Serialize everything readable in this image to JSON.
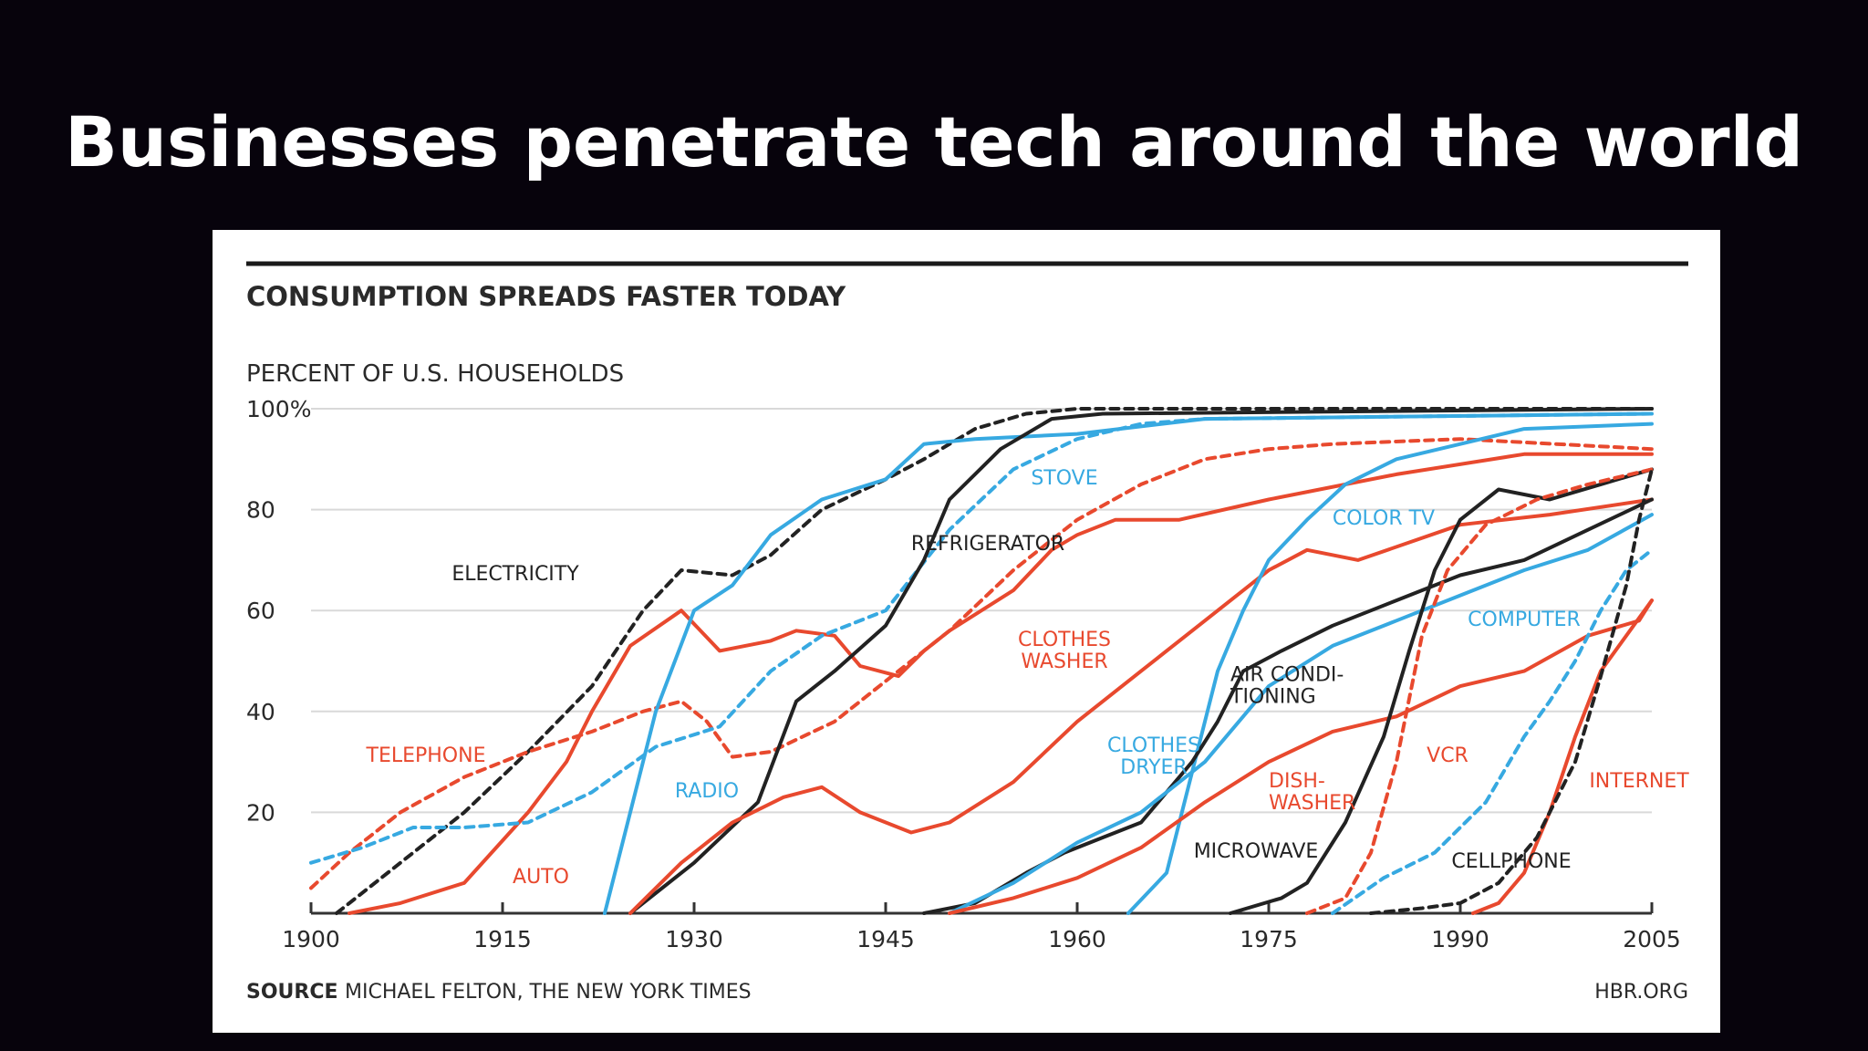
{
  "slide": {
    "title": "Businesses penetrate tech around the world"
  },
  "chart_data": {
    "type": "line",
    "title": "CONSUMPTION SPREADS FASTER TODAY",
    "ylabel": "PERCENT OF U.S. HOUSEHOLDS",
    "xlabel": "",
    "xlim": [
      1900,
      2005
    ],
    "ylim": [
      0,
      100
    ],
    "x_ticks": [
      "1900",
      "1915",
      "1930",
      "1945",
      "1960",
      "1975",
      "1990",
      "2005"
    ],
    "y_ticks": [
      "100%",
      "80",
      "60",
      "40",
      "20"
    ],
    "grid": true,
    "source_label": "SOURCE",
    "source_text": "MICHAEL FELTON, THE NEW YORK TIMES",
    "credit": "HBR.ORG",
    "colors": {
      "red": "#e8492e",
      "blue": "#37a9e1",
      "black": "#222222",
      "grid": "#d9d9d9"
    },
    "series": [
      {
        "name": "ELECTRICITY",
        "color": "black",
        "dash": true,
        "label_lines": [
          "ELECTRICITY"
        ],
        "points": [
          [
            1902,
            0
          ],
          [
            1907,
            10
          ],
          [
            1912,
            20
          ],
          [
            1917,
            32
          ],
          [
            1922,
            45
          ],
          [
            1926,
            60
          ],
          [
            1929,
            68
          ],
          [
            1933,
            67
          ],
          [
            1936,
            71
          ],
          [
            1940,
            80
          ],
          [
            1945,
            86
          ],
          [
            1948,
            90
          ],
          [
            1952,
            96
          ],
          [
            1956,
            99
          ],
          [
            1960,
            100
          ],
          [
            2005,
            100
          ]
        ]
      },
      {
        "name": "TELEPHONE",
        "color": "red",
        "dash": true,
        "label_lines": [
          "TELEPHONE"
        ],
        "points": [
          [
            1900,
            5
          ],
          [
            1903,
            12
          ],
          [
            1907,
            20
          ],
          [
            1912,
            27
          ],
          [
            1917,
            32
          ],
          [
            1922,
            36
          ],
          [
            1926,
            40
          ],
          [
            1929,
            42
          ],
          [
            1931,
            38
          ],
          [
            1933,
            31
          ],
          [
            1936,
            32
          ],
          [
            1941,
            38
          ],
          [
            1945,
            46
          ],
          [
            1950,
            56
          ],
          [
            1955,
            68
          ],
          [
            1960,
            78
          ],
          [
            1965,
            85
          ],
          [
            1970,
            90
          ],
          [
            1975,
            92
          ],
          [
            1980,
            93
          ],
          [
            1990,
            94
          ],
          [
            2005,
            92
          ]
        ]
      },
      {
        "name": "AUTO",
        "color": "red",
        "dash": false,
        "label_lines": [
          "AUTO"
        ],
        "points": [
          [
            1903,
            0
          ],
          [
            1907,
            2
          ],
          [
            1912,
            6
          ],
          [
            1917,
            20
          ],
          [
            1920,
            30
          ],
          [
            1922,
            40
          ],
          [
            1925,
            53
          ],
          [
            1929,
            60
          ],
          [
            1932,
            52
          ],
          [
            1936,
            54
          ],
          [
            1938,
            56
          ],
          [
            1941,
            55
          ],
          [
            1943,
            49
          ],
          [
            1946,
            47
          ],
          [
            1948,
            52
          ],
          [
            1950,
            56
          ],
          [
            1955,
            64
          ],
          [
            1958,
            72
          ],
          [
            1960,
            75
          ],
          [
            1963,
            78
          ],
          [
            1968,
            78
          ],
          [
            1975,
            82
          ],
          [
            1985,
            87
          ],
          [
            1995,
            91
          ],
          [
            2005,
            91
          ]
        ]
      },
      {
        "name": "STOVE",
        "color": "blue",
        "dash": true,
        "label_lines": [
          "STOVE"
        ],
        "points": [
          [
            1900,
            10
          ],
          [
            1904,
            13
          ],
          [
            1908,
            17
          ],
          [
            1912,
            17
          ],
          [
            1917,
            18
          ],
          [
            1922,
            24
          ],
          [
            1927,
            33
          ],
          [
            1932,
            37
          ],
          [
            1936,
            48
          ],
          [
            1940,
            55
          ],
          [
            1945,
            60
          ],
          [
            1950,
            76
          ],
          [
            1955,
            88
          ],
          [
            1960,
            94
          ],
          [
            1965,
            97
          ],
          [
            1970,
            98
          ],
          [
            2005,
            99
          ]
        ]
      },
      {
        "name": "RADIO",
        "color": "blue",
        "dash": false,
        "label_lines": [
          "RADIO"
        ],
        "points": [
          [
            1923,
            0
          ],
          [
            1925,
            20
          ],
          [
            1927,
            40
          ],
          [
            1930,
            60
          ],
          [
            1933,
            65
          ],
          [
            1936,
            75
          ],
          [
            1940,
            82
          ],
          [
            1945,
            86
          ],
          [
            1948,
            93
          ],
          [
            1952,
            94
          ],
          [
            1960,
            95
          ],
          [
            1970,
            98
          ],
          [
            2005,
            99
          ]
        ]
      },
      {
        "name": "REFRIGERATOR",
        "color": "black",
        "dash": false,
        "label_lines": [
          "REFRIGERATOR"
        ],
        "points": [
          [
            1925,
            0
          ],
          [
            1930,
            10
          ],
          [
            1935,
            22
          ],
          [
            1938,
            42
          ],
          [
            1941,
            48
          ],
          [
            1945,
            57
          ],
          [
            1948,
            70
          ],
          [
            1950,
            82
          ],
          [
            1954,
            92
          ],
          [
            1958,
            98
          ],
          [
            1962,
            99
          ],
          [
            2005,
            100
          ]
        ]
      },
      {
        "name": "CLOTHES WASHER",
        "color": "red",
        "dash": false,
        "label_lines": [
          "CLOTHES",
          "WASHER"
        ],
        "points": [
          [
            1925,
            0
          ],
          [
            1929,
            10
          ],
          [
            1933,
            18
          ],
          [
            1937,
            23
          ],
          [
            1940,
            25
          ],
          [
            1943,
            20
          ],
          [
            1947,
            16
          ],
          [
            1950,
            18
          ],
          [
            1955,
            26
          ],
          [
            1960,
            38
          ],
          [
            1965,
            48
          ],
          [
            1970,
            58
          ],
          [
            1975,
            68
          ],
          [
            1978,
            72
          ],
          [
            1982,
            70
          ],
          [
            1990,
            77
          ],
          [
            1997,
            79
          ],
          [
            2005,
            82
          ]
        ]
      },
      {
        "name": "COLOR TV",
        "color": "blue",
        "dash": false,
        "label_lines": [
          "COLOR TV"
        ],
        "points": [
          [
            1964,
            0
          ],
          [
            1967,
            8
          ],
          [
            1969,
            28
          ],
          [
            1971,
            48
          ],
          [
            1973,
            60
          ],
          [
            1975,
            70
          ],
          [
            1978,
            78
          ],
          [
            1981,
            85
          ],
          [
            1985,
            90
          ],
          [
            1990,
            93
          ],
          [
            1995,
            96
          ],
          [
            2005,
            97
          ]
        ]
      },
      {
        "name": "AIR CONDITIONING",
        "color": "black",
        "dash": false,
        "label_lines": [
          "AIR CONDI-",
          "TIONING"
        ],
        "points": [
          [
            1948,
            0
          ],
          [
            1952,
            2
          ],
          [
            1956,
            8
          ],
          [
            1959,
            12
          ],
          [
            1962,
            15
          ],
          [
            1965,
            18
          ],
          [
            1969,
            30
          ],
          [
            1971,
            38
          ],
          [
            1973,
            48
          ],
          [
            1976,
            52
          ],
          [
            1980,
            57
          ],
          [
            1985,
            62
          ],
          [
            1990,
            67
          ],
          [
            1995,
            70
          ],
          [
            2000,
            76
          ],
          [
            2005,
            82
          ]
        ]
      },
      {
        "name": "CLOTHES DRYER",
        "color": "blue",
        "dash": false,
        "label_lines": [
          "CLOTHES",
          "DRYER"
        ],
        "points": [
          [
            1950,
            0
          ],
          [
            1955,
            6
          ],
          [
            1960,
            14
          ],
          [
            1965,
            20
          ],
          [
            1970,
            30
          ],
          [
            1975,
            45
          ],
          [
            1980,
            53
          ],
          [
            1985,
            58
          ],
          [
            1990,
            63
          ],
          [
            1995,
            68
          ],
          [
            2000,
            72
          ],
          [
            2005,
            79
          ]
        ]
      },
      {
        "name": "DISHWASHER",
        "color": "red",
        "dash": false,
        "label_lines": [
          "DISH-",
          "WASHER"
        ],
        "points": [
          [
            1950,
            0
          ],
          [
            1955,
            3
          ],
          [
            1960,
            7
          ],
          [
            1965,
            13
          ],
          [
            1970,
            22
          ],
          [
            1975,
            30
          ],
          [
            1980,
            36
          ],
          [
            1985,
            39
          ],
          [
            1990,
            45
          ],
          [
            1995,
            48
          ],
          [
            2000,
            55
          ],
          [
            2004,
            58
          ],
          [
            2005,
            62
          ]
        ]
      },
      {
        "name": "MICROWAVE",
        "color": "black",
        "dash": false,
        "label_lines": [
          "MICROWAVE"
        ],
        "points": [
          [
            1972,
            0
          ],
          [
            1976,
            3
          ],
          [
            1978,
            6
          ],
          [
            1981,
            18
          ],
          [
            1984,
            35
          ],
          [
            1986,
            52
          ],
          [
            1988,
            68
          ],
          [
            1990,
            78
          ],
          [
            1993,
            84
          ],
          [
            1997,
            82
          ],
          [
            2001,
            85
          ],
          [
            2005,
            88
          ]
        ]
      },
      {
        "name": "VCR",
        "color": "red",
        "dash": true,
        "label_lines": [
          "VCR"
        ],
        "points": [
          [
            1978,
            0
          ],
          [
            1981,
            3
          ],
          [
            1983,
            12
          ],
          [
            1985,
            30
          ],
          [
            1987,
            55
          ],
          [
            1989,
            68
          ],
          [
            1992,
            77
          ],
          [
            1996,
            82
          ],
          [
            2000,
            85
          ],
          [
            2005,
            88
          ]
        ]
      },
      {
        "name": "COMPUTER",
        "color": "blue",
        "dash": true,
        "label_lines": [
          "COMPUTER"
        ],
        "points": [
          [
            1980,
            0
          ],
          [
            1984,
            7
          ],
          [
            1988,
            12
          ],
          [
            1992,
            22
          ],
          [
            1995,
            35
          ],
          [
            1997,
            42
          ],
          [
            1999,
            50
          ],
          [
            2001,
            60
          ],
          [
            2003,
            68
          ],
          [
            2005,
            72
          ]
        ]
      },
      {
        "name": "INTERNET",
        "color": "red",
        "dash": false,
        "label_lines": [
          "INTERNET"
        ],
        "points": [
          [
            1991,
            0
          ],
          [
            1993,
            2
          ],
          [
            1995,
            8
          ],
          [
            1997,
            20
          ],
          [
            1999,
            35
          ],
          [
            2001,
            48
          ],
          [
            2003,
            55
          ],
          [
            2005,
            62
          ]
        ]
      },
      {
        "name": "CELLPHONE",
        "color": "black",
        "dash": true,
        "label_lines": [
          "CELLPHONE"
        ],
        "points": [
          [
            1983,
            0
          ],
          [
            1987,
            1
          ],
          [
            1990,
            2
          ],
          [
            1993,
            6
          ],
          [
            1996,
            15
          ],
          [
            1999,
            30
          ],
          [
            2001,
            47
          ],
          [
            2003,
            65
          ],
          [
            2004,
            78
          ],
          [
            2005,
            88
          ]
        ]
      }
    ]
  }
}
